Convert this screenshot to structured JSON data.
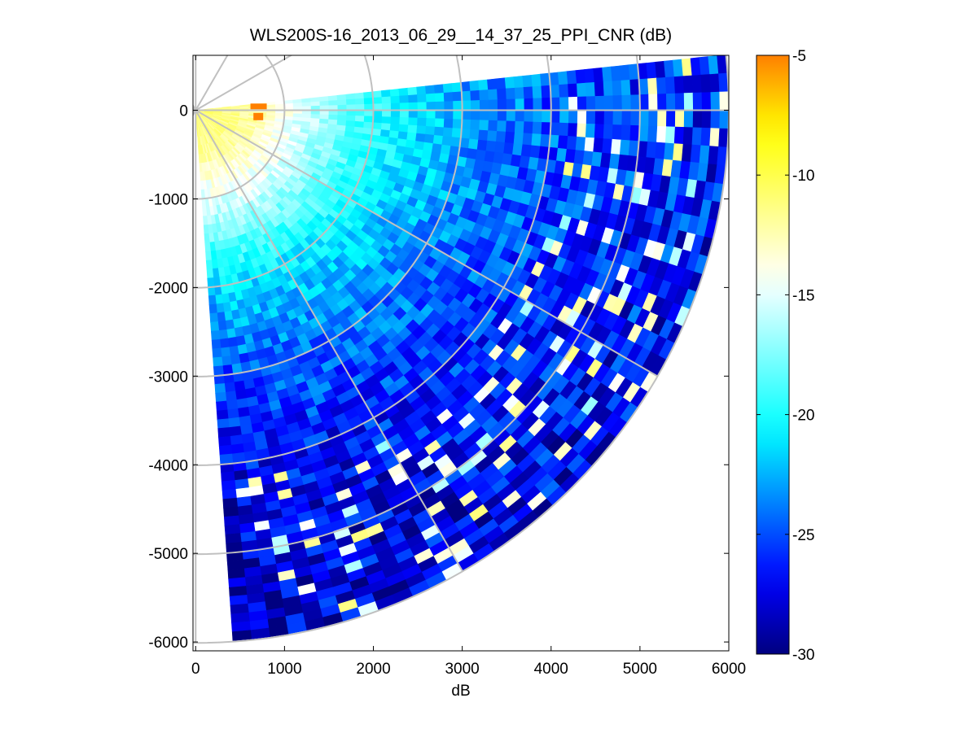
{
  "chart_data": {
    "type": "heatmap",
    "subtype": "polar-ppi-sector",
    "title": "WLS200S-16_2013_06_29__14_37_25_PPI_CNR (dB)",
    "xlabel": "dB",
    "ylabel": "",
    "xlim": [
      -30,
      6000
    ],
    "ylim": [
      -6100,
      620
    ],
    "xticks": [
      0,
      1000,
      2000,
      3000,
      4000,
      5000,
      6000
    ],
    "xtick_labels": [
      "0",
      "1000",
      "2000",
      "3000",
      "4000",
      "5000",
      "6000"
    ],
    "yticks": [
      0,
      -1000,
      -2000,
      -3000,
      -4000,
      -5000,
      -6000
    ],
    "ytick_labels": [
      "0",
      "-1000",
      "-2000",
      "-3000",
      "-4000",
      "-5000",
      "-6000"
    ],
    "colorbar": {
      "colormap": "jet",
      "clim": [
        -30,
        -5
      ],
      "ticks": [
        -5,
        -10,
        -15,
        -20,
        -25,
        -30
      ],
      "tick_labels": [
        "-5",
        "-10",
        "-15",
        "-20",
        "-25",
        "-30"
      ]
    },
    "sector": {
      "azimuth_start_deg": 6,
      "azimuth_end_deg": -86,
      "max_range": 6000,
      "range_gate": 100,
      "azimuth_step_deg": 2
    },
    "polar_grid": {
      "range_rings": [
        1000,
        2000,
        3000,
        4000,
        5000,
        6000
      ],
      "spoke_angles_deg": [
        0,
        30,
        60,
        90,
        120,
        150,
        180,
        210,
        240,
        270,
        300,
        330
      ],
      "color": "#c0c0c0",
      "hot_spot": {
        "x": 690,
        "y": 30,
        "value": -5
      }
    },
    "cnr_profile": [
      {
        "range": 0,
        "cnr": -11
      },
      {
        "range": 500,
        "cnr": -11.5
      },
      {
        "range": 1000,
        "cnr": -14
      },
      {
        "range": 1500,
        "cnr": -17
      },
      {
        "range": 2000,
        "cnr": -19.5
      },
      {
        "range": 2500,
        "cnr": -21
      },
      {
        "range": 3000,
        "cnr": -22.5
      },
      {
        "range": 3500,
        "cnr": -23.5
      },
      {
        "range": 4000,
        "cnr": -24.5
      },
      {
        "range": 4500,
        "cnr": -25
      },
      {
        "range": 5000,
        "cnr": -25.5
      },
      {
        "range": 6000,
        "cnr": -26
      }
    ],
    "south_bias_db": -2.5
  }
}
